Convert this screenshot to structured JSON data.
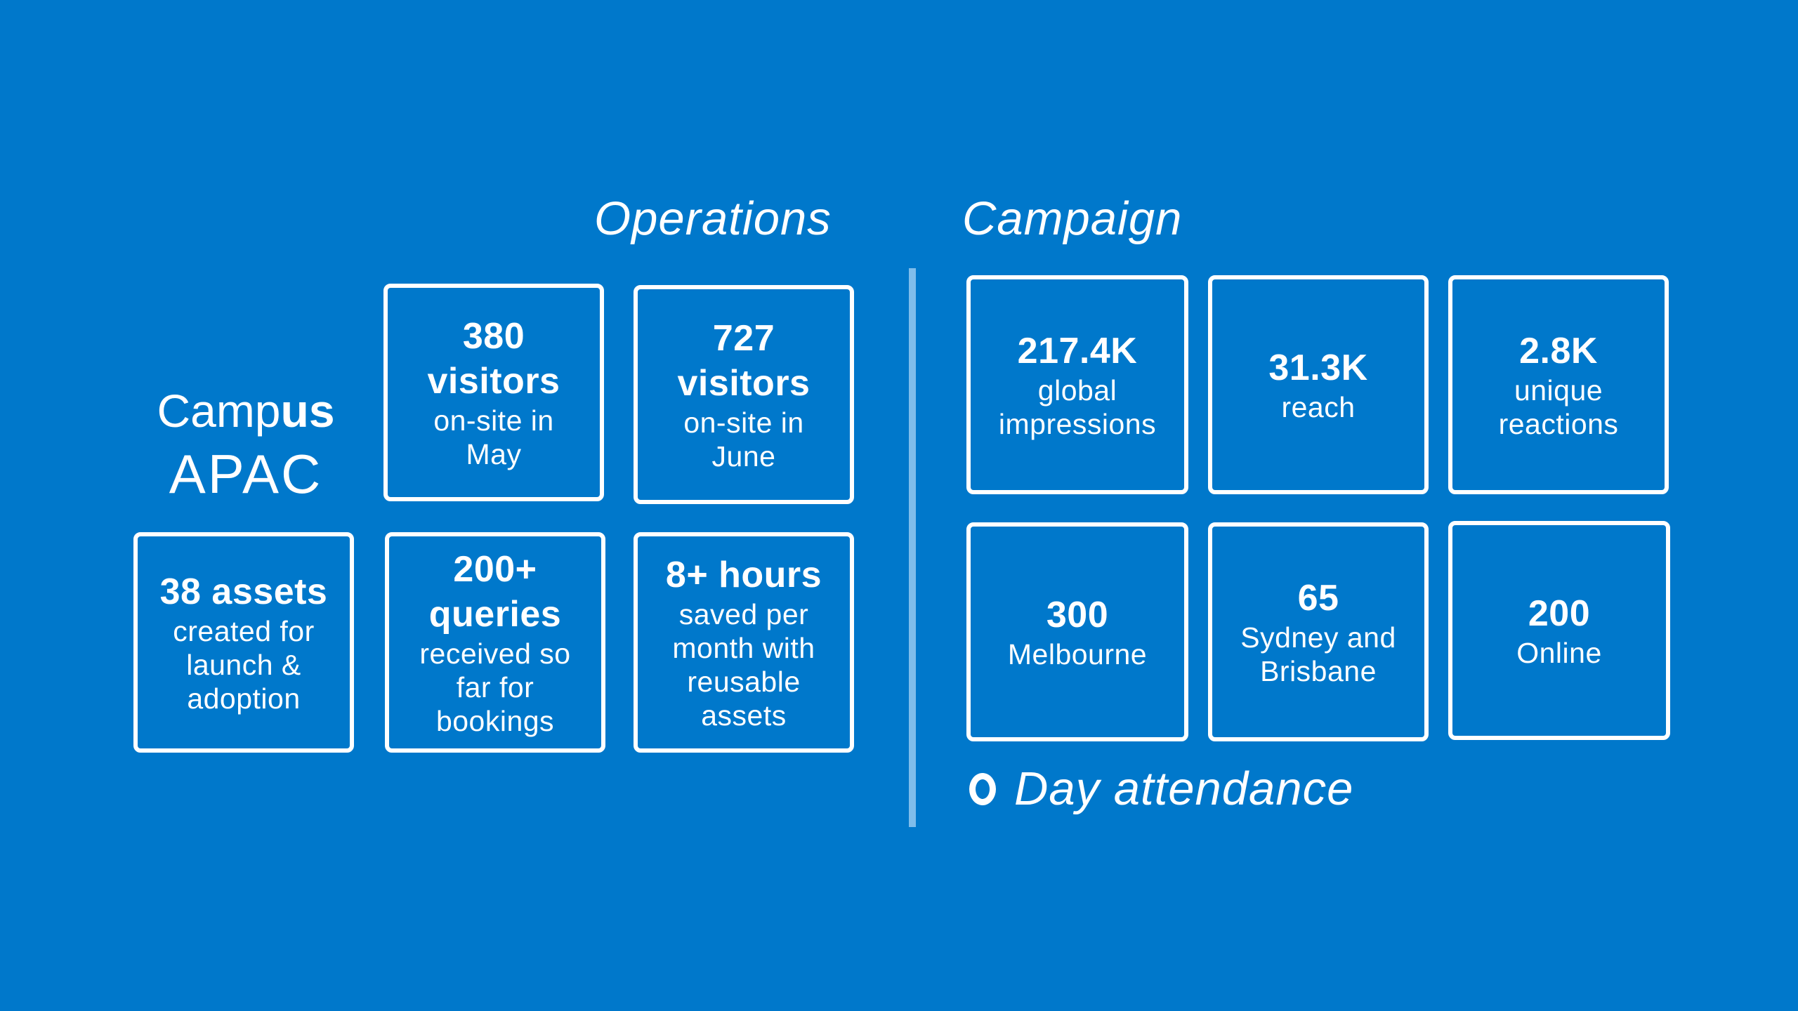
{
  "sections": {
    "operations_title": "Operations",
    "campaign_title": "Campaign"
  },
  "brand": {
    "line1_light": "Camp",
    "line1_bold": "us",
    "line2": "APAC"
  },
  "operations": {
    "visitors_may": {
      "big1": "380",
      "big2": "visitors",
      "small1": "on-site in",
      "small2": "May"
    },
    "visitors_june": {
      "big1": "727",
      "big2": "visitors",
      "small1": "on-site in",
      "small2": "June"
    },
    "assets": {
      "big1": "38 assets",
      "small1": "created for",
      "small2": "launch &",
      "small3": "adoption"
    },
    "queries": {
      "big1": "200+",
      "big2": "queries",
      "small1": "received so",
      "small2": "far for",
      "small3": "bookings"
    },
    "hours": {
      "big1": "8+ hours",
      "small1": "saved per",
      "small2": "month with",
      "small3": "reusable",
      "small4": "assets"
    }
  },
  "campaign": {
    "impressions": {
      "big1": "217.4K",
      "small1": "global",
      "small2": "impressions"
    },
    "reach": {
      "big1": "31.3K",
      "small1": "reach"
    },
    "reactions": {
      "big1": "2.8K",
      "small1": "unique",
      "small2": "reactions"
    },
    "melbourne": {
      "big1": "300",
      "small1": "Melbourne"
    },
    "sydney_brisbane": {
      "big1": "65",
      "small1": "Sydney and",
      "small2": "Brisbane"
    },
    "online": {
      "big1": "200",
      "small1": "Online"
    }
  },
  "attendance": {
    "icon": "ring-icon",
    "label": "Day attendance"
  }
}
